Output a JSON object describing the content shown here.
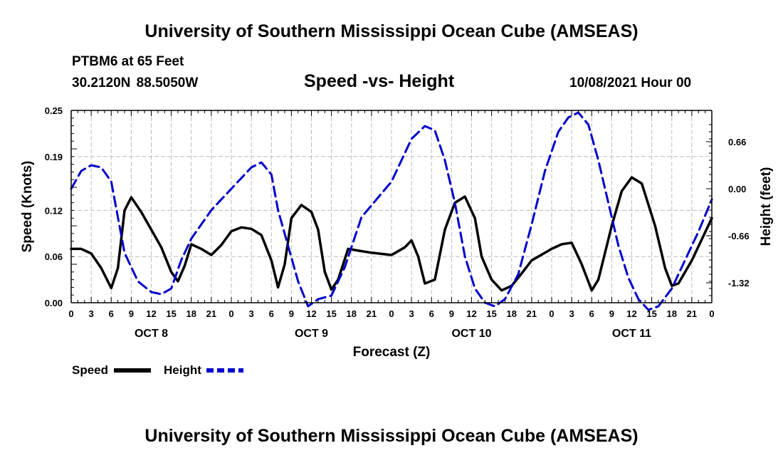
{
  "header": {
    "title": "University of Southern Mississippi Ocean Cube (AMSEAS)",
    "station": "PTBM6 at 65 Feet",
    "coordinates": "30.2120N  88.5050W",
    "datetime": "10/08/2021 Hour 00"
  },
  "footer": {
    "title": "University of Southern Mississippi Ocean Cube (AMSEAS)"
  },
  "colors": {
    "speed": "#000000",
    "height": "#0000cc",
    "grid": "#bbbbbb"
  },
  "chart_data": {
    "type": "line",
    "title": "Speed -vs- Height",
    "xlabel": "Forecast (Z)",
    "ylabel": "Speed (Knots)",
    "y2label": "Height (feet)",
    "xlim": [
      0,
      96
    ],
    "ylim": [
      0,
      0.25
    ],
    "y2lim": [
      -1.6,
      1.1
    ],
    "yticks": [
      0.0,
      0.06,
      0.12,
      0.19,
      0.25
    ],
    "ytick_labels": [
      "0.00",
      "0.06",
      "0.12",
      "0.19",
      "0.25"
    ],
    "y2ticks": [
      -1.32,
      -0.66,
      0.0,
      0.66
    ],
    "y2tick_labels": [
      "-1.32",
      "-0.66",
      "0.00",
      "0.66"
    ],
    "xtick_hours": [
      0,
      3,
      6,
      9,
      12,
      15,
      18,
      21,
      24,
      27,
      30,
      33,
      36,
      39,
      42,
      45,
      48,
      51,
      54,
      57,
      60,
      63,
      66,
      69,
      72,
      75,
      78,
      81,
      84,
      87,
      90,
      93,
      96
    ],
    "xtick_labels": [
      "0",
      "3",
      "6",
      "9",
      "12",
      "15",
      "18",
      "21",
      "0",
      "3",
      "6",
      "9",
      "12",
      "15",
      "18",
      "21",
      "0",
      "3",
      "6",
      "9",
      "12",
      "15",
      "18",
      "21",
      "0",
      "3",
      "6",
      "9",
      "12",
      "15",
      "18",
      "21",
      "0"
    ],
    "day_labels": [
      {
        "hour": 12,
        "label": "OCT 8"
      },
      {
        "hour": 36,
        "label": "OCT 9"
      },
      {
        "hour": 60,
        "label": "OCT 10"
      },
      {
        "hour": 84,
        "label": "OCT 11"
      }
    ],
    "grid": true,
    "legend": {
      "position": "bottom-left",
      "speed_label": "Speed",
      "height_label": "Height"
    },
    "series": [
      {
        "name": "Speed",
        "axis": "left",
        "style": "solid",
        "points": [
          [
            0,
            0.07
          ],
          [
            1.5,
            0.07
          ],
          [
            3,
            0.064
          ],
          [
            4.5,
            0.045
          ],
          [
            6,
            0.019
          ],
          [
            7,
            0.045
          ],
          [
            8,
            0.12
          ],
          [
            9,
            0.137
          ],
          [
            10.5,
            0.118
          ],
          [
            12,
            0.095
          ],
          [
            13.5,
            0.072
          ],
          [
            15,
            0.04
          ],
          [
            16,
            0.028
          ],
          [
            17,
            0.048
          ],
          [
            18,
            0.076
          ],
          [
            19.5,
            0.07
          ],
          [
            21,
            0.062
          ],
          [
            22.5,
            0.075
          ],
          [
            24,
            0.093
          ],
          [
            25.5,
            0.098
          ],
          [
            27,
            0.096
          ],
          [
            28.5,
            0.088
          ],
          [
            30,
            0.055
          ],
          [
            31,
            0.02
          ],
          [
            32,
            0.05
          ],
          [
            33,
            0.11
          ],
          [
            34.5,
            0.127
          ],
          [
            36,
            0.118
          ],
          [
            37,
            0.095
          ],
          [
            38,
            0.04
          ],
          [
            39,
            0.017
          ],
          [
            40,
            0.03
          ],
          [
            41.5,
            0.07
          ],
          [
            43.5,
            0.067
          ],
          [
            45,
            0.065
          ],
          [
            48,
            0.062
          ],
          [
            50,
            0.072
          ],
          [
            51,
            0.081
          ],
          [
            52,
            0.06
          ],
          [
            53,
            0.025
          ],
          [
            54.5,
            0.03
          ],
          [
            56,
            0.095
          ],
          [
            57.5,
            0.13
          ],
          [
            59,
            0.138
          ],
          [
            60.5,
            0.11
          ],
          [
            61.5,
            0.06
          ],
          [
            63,
            0.03
          ],
          [
            64.5,
            0.016
          ],
          [
            66,
            0.022
          ],
          [
            67.5,
            0.038
          ],
          [
            69,
            0.055
          ],
          [
            72,
            0.07
          ],
          [
            73.5,
            0.076
          ],
          [
            75,
            0.078
          ],
          [
            76.5,
            0.05
          ],
          [
            78,
            0.016
          ],
          [
            79,
            0.03
          ],
          [
            81,
            0.1
          ],
          [
            82.5,
            0.145
          ],
          [
            84,
            0.163
          ],
          [
            85.5,
            0.155
          ],
          [
            87.5,
            0.1
          ],
          [
            89,
            0.045
          ],
          [
            90,
            0.022
          ],
          [
            91,
            0.025
          ],
          [
            93,
            0.055
          ],
          [
            96,
            0.11
          ]
        ]
      },
      {
        "name": "Height",
        "axis": "right",
        "style": "dashed",
        "points": [
          [
            0,
            0.0
          ],
          [
            1.5,
            0.25
          ],
          [
            3,
            0.33
          ],
          [
            4.5,
            0.3
          ],
          [
            6,
            0.1
          ],
          [
            7,
            -0.4
          ],
          [
            8,
            -0.9
          ],
          [
            10,
            -1.3
          ],
          [
            12,
            -1.45
          ],
          [
            13.5,
            -1.48
          ],
          [
            15,
            -1.4
          ],
          [
            16.5,
            -1.0
          ],
          [
            18,
            -0.7
          ],
          [
            21,
            -0.3
          ],
          [
            24,
            0.0
          ],
          [
            27,
            0.3
          ],
          [
            28.5,
            0.37
          ],
          [
            30,
            0.2
          ],
          [
            31,
            -0.3
          ],
          [
            32.5,
            -0.8
          ],
          [
            34,
            -1.3
          ],
          [
            35.5,
            -1.65
          ],
          [
            37,
            -1.55
          ],
          [
            39,
            -1.5
          ],
          [
            41,
            -1.1
          ],
          [
            43.5,
            -0.4
          ],
          [
            48,
            0.1
          ],
          [
            51,
            0.7
          ],
          [
            53,
            0.88
          ],
          [
            54.5,
            0.82
          ],
          [
            56,
            0.4
          ],
          [
            57.5,
            -0.2
          ],
          [
            59,
            -0.95
          ],
          [
            60.5,
            -1.4
          ],
          [
            62,
            -1.6
          ],
          [
            63.5,
            -1.65
          ],
          [
            65,
            -1.55
          ],
          [
            67,
            -1.2
          ],
          [
            69,
            -0.5
          ],
          [
            71,
            0.25
          ],
          [
            73,
            0.8
          ],
          [
            74.5,
            1.0
          ],
          [
            76,
            1.07
          ],
          [
            77.5,
            0.9
          ],
          [
            79,
            0.4
          ],
          [
            80.5,
            -0.2
          ],
          [
            82,
            -0.8
          ],
          [
            83.5,
            -1.25
          ],
          [
            85,
            -1.55
          ],
          [
            86.5,
            -1.7
          ],
          [
            88,
            -1.65
          ],
          [
            90,
            -1.4
          ],
          [
            92,
            -1.0
          ],
          [
            94,
            -0.6
          ],
          [
            96,
            -0.15
          ]
        ]
      }
    ]
  }
}
